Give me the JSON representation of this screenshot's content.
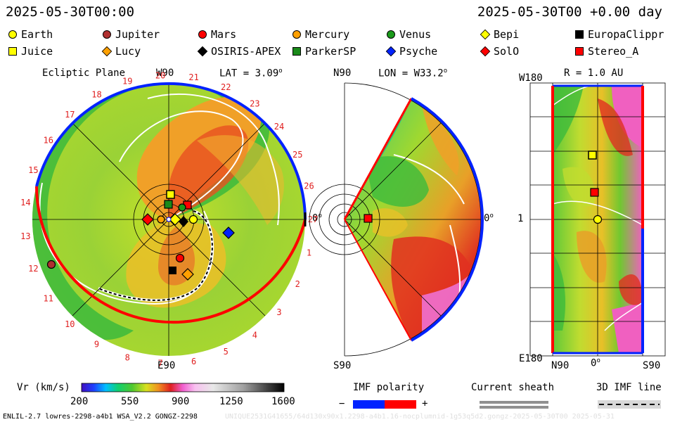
{
  "header": {
    "left_time": "2025-05-30T00:00",
    "right_time": "2025-05-30T00 +0.00 day"
  },
  "legend": [
    {
      "label": "Earth",
      "shape": "circle",
      "color": "#ffff00"
    },
    {
      "label": "Jupiter",
      "shape": "circle",
      "color": "#b03030"
    },
    {
      "label": "Mars",
      "shape": "circle",
      "color": "#ff0000"
    },
    {
      "label": "Mercury",
      "shape": "circle",
      "color": "#ffa000"
    },
    {
      "label": "Venus",
      "shape": "circle",
      "color": "#1a9a1a"
    },
    {
      "label": "Bepi",
      "shape": "diamond",
      "color": "#ffff00"
    },
    {
      "label": "EuropaClippr",
      "shape": "square",
      "color": "#000000"
    },
    {
      "label": "Juice",
      "shape": "square",
      "color": "#ffff00"
    },
    {
      "label": "Lucy",
      "shape": "diamond",
      "color": "#ffa000"
    },
    {
      "label": "OSIRIS-APEX",
      "shape": "diamond",
      "color": "#000000"
    },
    {
      "label": "ParkerSP",
      "shape": "square",
      "color": "#1a8a1a"
    },
    {
      "label": "Psyche",
      "shape": "diamond",
      "color": "#0022ff"
    },
    {
      "label": "SolO",
      "shape": "diamond",
      "color": "#ff0000"
    },
    {
      "label": "Stereo_A",
      "shape": "square",
      "color": "#ff0000"
    }
  ],
  "panels": {
    "ecliptic": {
      "title": "Ecliptic Plane",
      "top": "W90",
      "lat": "LAT = 3.09",
      "degree": "o",
      "right": "0",
      "bottom": "E90",
      "carrington": [
        "1",
        "2",
        "3",
        "4",
        "5",
        "6",
        "7",
        "8",
        "9",
        "10",
        "11",
        "12",
        "13",
        "14",
        "15",
        "16",
        "17",
        "18",
        "19",
        "20",
        "21",
        "22",
        "23",
        "24",
        "25",
        "26",
        "27"
      ]
    },
    "meridional": {
      "top": "N90",
      "lon": "LON = W33.2",
      "degree": "o",
      "right": "0",
      "bottom": "S90"
    },
    "shell": {
      "title": "R = 1.0 AU",
      "top": "W180",
      "left_mid": "1",
      "bottom": "E180",
      "x_left": "N90",
      "x_mid": "0",
      "x_right": "S90",
      "degree": "o"
    }
  },
  "colorbar": {
    "label": "Vr (km/s)",
    "ticks": [
      "200",
      "550",
      "900",
      "1250",
      "1600"
    ]
  },
  "imf": {
    "label": "IMF polarity",
    "minus": "−",
    "plus": "+"
  },
  "sheath": {
    "label": "Current sheath"
  },
  "imf3d": {
    "label": "3D IMF line"
  },
  "footer": {
    "left": "ENLIL-2.7 lowres-2298-a4b1 WSA_V2.2 GONGZ-2298",
    "right": "UNIQUE2531G41655/64d130x90x1.2298-a4b1.16-nocplumnid-1g53q5d2.gongz-2025-05-30T00   2025-05-31"
  },
  "colors": {
    "green": "#3cba3c",
    "yellowgreen": "#b8dc2c",
    "orange": "#f0a028",
    "red": "#e83020",
    "pink": "#f068c8",
    "teal": "#10c890",
    "pos_polarity": "#ff0000",
    "neg_polarity": "#0022ff"
  }
}
